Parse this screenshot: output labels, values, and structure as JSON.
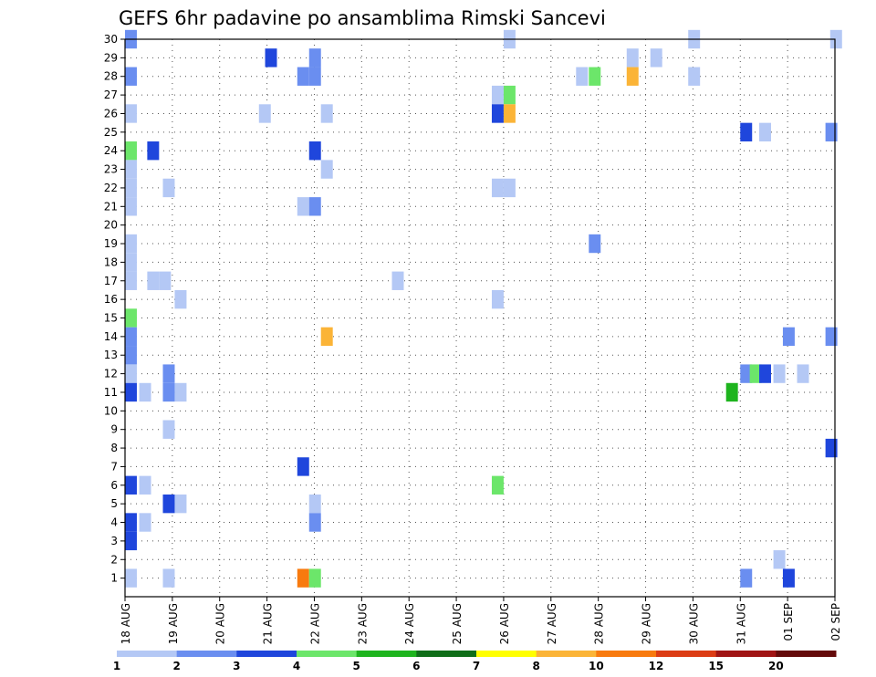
{
  "chart_data": {
    "type": "heatmap",
    "title": "GEFS 6hr padavine po ansamblima Rimski Sancevi",
    "xlabel": "",
    "ylabel": "",
    "x_ticks": [
      "18 AUG",
      "19 AUG",
      "20 AUG",
      "21 AUG",
      "22 AUG",
      "23 AUG",
      "24 AUG",
      "25 AUG",
      "26 AUG",
      "27 AUG",
      "28 AUG",
      "29 AUG",
      "30 AUG",
      "31 AUG",
      "01 SEP",
      "02 SEP"
    ],
    "y_ticks": [
      1,
      2,
      3,
      4,
      5,
      6,
      7,
      8,
      9,
      10,
      11,
      12,
      13,
      14,
      15,
      16,
      17,
      18,
      19,
      20,
      21,
      22,
      23,
      24,
      25,
      26,
      27,
      28,
      29,
      30
    ],
    "xlim_days": [
      0,
      15
    ],
    "ylim": [
      0,
      30
    ],
    "grid": true,
    "colorbar": {
      "labels": [
        "1",
        "2",
        "3",
        "4",
        "5",
        "6",
        "7",
        "8",
        "10",
        "12",
        "15",
        "20"
      ],
      "colors": [
        "#b4c8f5",
        "#6a8ef0",
        "#1f46dc",
        "#6ce66a",
        "#1eb41e",
        "#0f6e19",
        "#ffff00",
        "#fbb437",
        "#f87a0e",
        "#dc3c14",
        "#a01414",
        "#640a0a"
      ]
    },
    "cells_note_units": "x = day offset from 18 AUG 00Z, y = ensemble member, v = 6hr precipitation",
    "cells": [
      {
        "x": 0.0,
        "y": 30,
        "v": 2.5
      },
      {
        "x": 2.96,
        "y": 29,
        "v": 3.2
      },
      {
        "x": 3.89,
        "y": 29,
        "v": 2.6
      },
      {
        "x": 0.0,
        "y": 28,
        "v": 2.5
      },
      {
        "x": 3.64,
        "y": 28,
        "v": 2.6
      },
      {
        "x": 3.89,
        "y": 28,
        "v": 2.6
      },
      {
        "x": 0.0,
        "y": 26,
        "v": 1.5
      },
      {
        "x": 2.83,
        "y": 26,
        "v": 1.5
      },
      {
        "x": 4.14,
        "y": 26,
        "v": 1.5
      },
      {
        "x": 0.0,
        "y": 24,
        "v": 4.5
      },
      {
        "x": 0.47,
        "y": 24,
        "v": 3.5
      },
      {
        "x": 3.89,
        "y": 24,
        "v": 3.5
      },
      {
        "x": 0.0,
        "y": 23,
        "v": 1.5
      },
      {
        "x": 4.14,
        "y": 23,
        "v": 1.5
      },
      {
        "x": 0.0,
        "y": 22,
        "v": 1.5
      },
      {
        "x": 0.8,
        "y": 22,
        "v": 1.5
      },
      {
        "x": 0.0,
        "y": 21,
        "v": 1.5
      },
      {
        "x": 3.64,
        "y": 21,
        "v": 1.5
      },
      {
        "x": 3.89,
        "y": 21,
        "v": 2.5
      },
      {
        "x": 0.0,
        "y": 19,
        "v": 1.5
      },
      {
        "x": 0.0,
        "y": 18,
        "v": 1.5
      },
      {
        "x": 0.0,
        "y": 17,
        "v": 1.5
      },
      {
        "x": 0.47,
        "y": 17,
        "v": 1.5
      },
      {
        "x": 0.72,
        "y": 17,
        "v": 1.5
      },
      {
        "x": 5.64,
        "y": 17,
        "v": 1.5
      },
      {
        "x": 1.05,
        "y": 16,
        "v": 1.5
      },
      {
        "x": 0.0,
        "y": 15,
        "v": 4.5
      },
      {
        "x": 4.14,
        "y": 14,
        "v": 8.5
      },
      {
        "x": 0.0,
        "y": 14,
        "v": 2.5
      },
      {
        "x": 0.0,
        "y": 13,
        "v": 2.5
      },
      {
        "x": 0.0,
        "y": 12,
        "v": 1.5
      },
      {
        "x": 0.8,
        "y": 12,
        "v": 2.5
      },
      {
        "x": 0.0,
        "y": 11,
        "v": 3.5
      },
      {
        "x": 0.3,
        "y": 11,
        "v": 1.5
      },
      {
        "x": 0.8,
        "y": 11,
        "v": 2.5
      },
      {
        "x": 1.05,
        "y": 11,
        "v": 1.5
      },
      {
        "x": 0.8,
        "y": 9,
        "v": 1.5
      },
      {
        "x": 3.64,
        "y": 7,
        "v": 3.5
      },
      {
        "x": 0.0,
        "y": 6,
        "v": 3.5
      },
      {
        "x": 0.3,
        "y": 6,
        "v": 1.5
      },
      {
        "x": 0.8,
        "y": 5,
        "v": 3.5
      },
      {
        "x": 1.05,
        "y": 5,
        "v": 1.5
      },
      {
        "x": 3.89,
        "y": 5,
        "v": 1.5
      },
      {
        "x": 0.0,
        "y": 4,
        "v": 3.5
      },
      {
        "x": 0.3,
        "y": 4,
        "v": 1.5
      },
      {
        "x": 3.89,
        "y": 4,
        "v": 2.5
      },
      {
        "x": 0.0,
        "y": 3,
        "v": 3.5
      },
      {
        "x": 0.0,
        "y": 1,
        "v": 1.5
      },
      {
        "x": 0.8,
        "y": 1,
        "v": 1.5
      },
      {
        "x": 3.64,
        "y": 1,
        "v": 11
      },
      {
        "x": 3.89,
        "y": 1,
        "v": 4.5
      },
      {
        "x": 8.0,
        "y": 30,
        "v": 1.5
      },
      {
        "x": 7.75,
        "y": 27,
        "v": 1.5
      },
      {
        "x": 8.0,
        "y": 27,
        "v": 4.5
      },
      {
        "x": 7.75,
        "y": 26,
        "v": 3.5
      },
      {
        "x": 8.0,
        "y": 26,
        "v": 8.5
      },
      {
        "x": 7.75,
        "y": 22,
        "v": 1.5
      },
      {
        "x": 8.0,
        "y": 22,
        "v": 1.5
      },
      {
        "x": 7.75,
        "y": 16,
        "v": 1.5
      },
      {
        "x": 7.75,
        "y": 6,
        "v": 4.5
      },
      {
        "x": 10.6,
        "y": 29,
        "v": 1.5
      },
      {
        "x": 11.1,
        "y": 29,
        "v": 1.5
      },
      {
        "x": 9.53,
        "y": 28,
        "v": 1.5
      },
      {
        "x": 9.8,
        "y": 28,
        "v": 4.5
      },
      {
        "x": 10.6,
        "y": 28,
        "v": 8.5
      },
      {
        "x": 9.8,
        "y": 19,
        "v": 2.5
      },
      {
        "x": 11.9,
        "y": 30,
        "v": 1.5
      },
      {
        "x": 11.9,
        "y": 28,
        "v": 1.5
      },
      {
        "x": 13.0,
        "y": 25,
        "v": 3.5
      },
      {
        "x": 13.4,
        "y": 25,
        "v": 1.5
      },
      {
        "x": 14.8,
        "y": 25,
        "v": 2.5
      },
      {
        "x": 13.9,
        "y": 14,
        "v": 2.5
      },
      {
        "x": 14.8,
        "y": 14,
        "v": 2.5
      },
      {
        "x": 13.0,
        "y": 12,
        "v": 2.5
      },
      {
        "x": 13.2,
        "y": 12,
        "v": 4.5
      },
      {
        "x": 13.4,
        "y": 12,
        "v": 3.5
      },
      {
        "x": 13.7,
        "y": 12,
        "v": 1.5
      },
      {
        "x": 14.2,
        "y": 12,
        "v": 1.5
      },
      {
        "x": 12.7,
        "y": 11,
        "v": 5.5
      },
      {
        "x": 14.8,
        "y": 8,
        "v": 3.5
      },
      {
        "x": 13.7,
        "y": 2,
        "v": 1.5
      },
      {
        "x": 13.0,
        "y": 1,
        "v": 2.5
      },
      {
        "x": 13.9,
        "y": 1,
        "v": 3.5
      },
      {
        "x": 14.9,
        "y": 30,
        "v": 1.5
      }
    ]
  }
}
